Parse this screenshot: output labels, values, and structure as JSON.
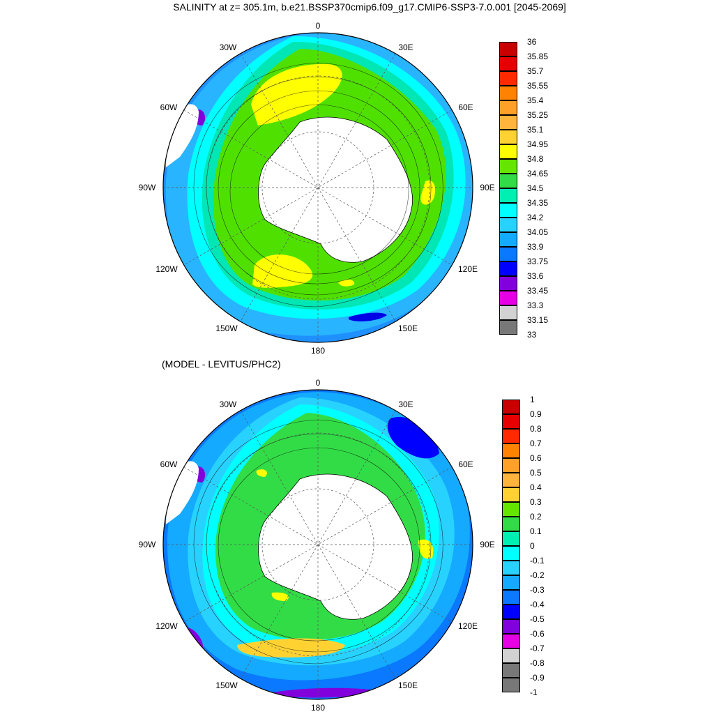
{
  "title": "SALINITY at z= 305.1m, b.e21.BSSP370cmip6.f09_g17.CMIP6-SSP3-7.0.001 [2045-2069]",
  "subtitle": "(MODEL - LEVITUS/PHC2)",
  "longitude_labels": [
    "0",
    "30E",
    "60E",
    "90E",
    "120E",
    "150E",
    "180",
    "150W",
    "120W",
    "90W",
    "60W",
    "30W"
  ],
  "panels": [
    {
      "name": "salinity",
      "colorbar": {
        "labels": [
          "36",
          "35.85",
          "35.7",
          "35.55",
          "35.4",
          "35.25",
          "35.1",
          "34.95",
          "34.8",
          "34.65",
          "34.5",
          "34.35",
          "34.2",
          "34.05",
          "33.9",
          "33.75",
          "33.6",
          "33.45",
          "33.3",
          "33.15",
          "33"
        ],
        "colors": [
          "#c80000",
          "#e60000",
          "#ff2a00",
          "#ff8200",
          "#ffa028",
          "#ffb43c",
          "#ffd232",
          "#ffff00",
          "#64e600",
          "#32dc46",
          "#00f0b4",
          "#00ffff",
          "#28d2ff",
          "#14aaff",
          "#0a78ff",
          "#0000ff",
          "#8200dc",
          "#e600e6",
          "#d2d2d2",
          "#787878"
        ]
      }
    },
    {
      "name": "difference",
      "colorbar": {
        "labels": [
          "1",
          "0.9",
          "0.8",
          "0.7",
          "0.6",
          "0.5",
          "0.4",
          "0.3",
          "0.2",
          "0.1",
          "0",
          "-0.1",
          "-0.2",
          "-0.3",
          "-0.4",
          "-0.5",
          "-0.6",
          "-0.7",
          "-0.8",
          "-0.9",
          "-1"
        ],
        "colors": [
          "#c80000",
          "#e60000",
          "#ff2a00",
          "#ff8200",
          "#ffa028",
          "#ffb43c",
          "#ffd232",
          "#64e600",
          "#32dc46",
          "#00f0b4",
          "#00ffff",
          "#28d2ff",
          "#14aaff",
          "#0a78ff",
          "#0000ff",
          "#8200dc",
          "#e600e6",
          "#d2d2d2",
          "#787878",
          "#787878"
        ]
      }
    }
  ]
}
